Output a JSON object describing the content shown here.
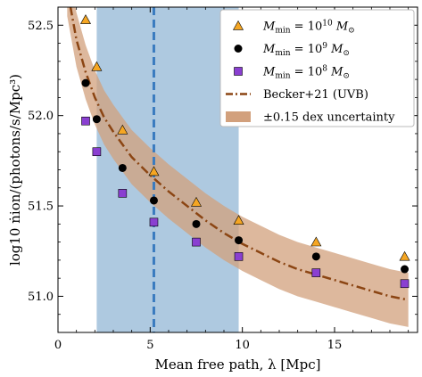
{
  "chart_data": {
    "type": "scatter",
    "xlabel": "Mean free path, λ [Mpc]",
    "ylabel": "log10 ṅion/(photons/s/Mpc³)",
    "xlim": [
      0,
      19.5
    ],
    "ylim": [
      50.8,
      52.6
    ],
    "xticks": [
      0,
      5,
      10,
      15
    ],
    "yticks": [
      51.0,
      51.5,
      52.0,
      52.5
    ],
    "x_tick_labels": [
      "0",
      "5",
      "10",
      "15"
    ],
    "y_tick_labels": [
      "51.0",
      "51.5",
      "52.0",
      "52.5"
    ],
    "legend_position": "top-right",
    "series": [
      {
        "name": "Mmin = 10^10 M⊙",
        "legend_main": "M",
        "legend_sub": "min",
        "legend_eq": " = 10",
        "legend_sup": "10",
        "legend_unit": " M",
        "legend_unit_sub": "⊙",
        "marker": "triangle",
        "color": "#f5a623",
        "x": [
          1.5,
          2.1,
          3.5,
          5.2,
          7.5,
          9.8,
          14.0,
          18.8
        ],
        "y": [
          52.53,
          52.27,
          51.92,
          51.69,
          51.52,
          51.42,
          51.3,
          51.22
        ]
      },
      {
        "name": "Mmin = 10^9 M⊙",
        "legend_main": "M",
        "legend_sub": "min",
        "legend_eq": " = 10",
        "legend_sup": "9",
        "legend_unit": " M",
        "legend_unit_sub": "⊙",
        "marker": "circle",
        "color": "#000000",
        "x": [
          1.5,
          2.1,
          3.5,
          5.2,
          7.5,
          9.8,
          14.0,
          18.8
        ],
        "y": [
          52.18,
          51.98,
          51.71,
          51.53,
          51.4,
          51.31,
          51.22,
          51.15
        ]
      },
      {
        "name": "Mmin = 10^8 M⊙",
        "legend_main": "M",
        "legend_sub": "min",
        "legend_eq": " = 10",
        "legend_sup": "8",
        "legend_unit": " M",
        "legend_unit_sub": "⊙",
        "marker": "square",
        "color": "#8a3fd1",
        "x": [
          1.5,
          2.1,
          3.5,
          5.2,
          7.5,
          9.8,
          14.0,
          18.8
        ],
        "y": [
          51.97,
          51.8,
          51.57,
          51.41,
          51.3,
          51.22,
          51.13,
          51.07
        ]
      }
    ],
    "model_curve": {
      "name": "Becker+21 (UVB)",
      "style": "dash-dot",
      "color": "#8b4513",
      "x": [
        0.5,
        1,
        1.5,
        2,
        2.5,
        3,
        3.5,
        4,
        5,
        6,
        7,
        8,
        9,
        10,
        11,
        12,
        13,
        14,
        15,
        16,
        17,
        18,
        19
      ],
      "y": [
        52.7,
        52.42,
        52.24,
        52.1,
        51.99,
        51.91,
        51.84,
        51.77,
        51.67,
        51.58,
        51.5,
        51.42,
        51.35,
        51.29,
        51.24,
        51.19,
        51.15,
        51.12,
        51.09,
        51.06,
        51.03,
        51.0,
        50.98
      ]
    },
    "uncertainty_band": {
      "name": "±0.15 dex uncertainty",
      "half_width_dex": 0.15,
      "color": "#d2a07c"
    },
    "shaded_region": {
      "x_range": [
        2.1,
        9.8
      ],
      "color": "#aec9e0"
    },
    "vertical_line": {
      "x": 5.2,
      "style": "dashed",
      "color": "#3a7bbf"
    }
  }
}
